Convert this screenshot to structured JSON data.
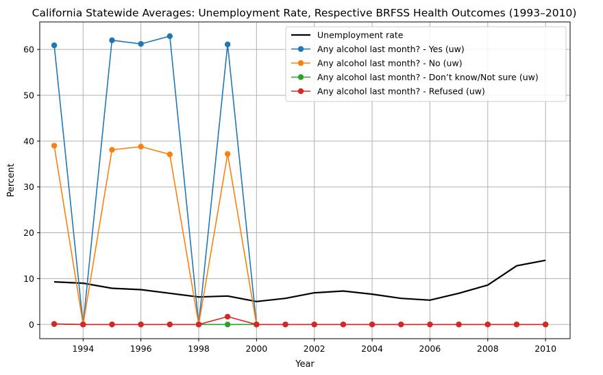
{
  "chart_data": {
    "type": "line",
    "title": "California Statewide Averages: Unemployment Rate, Respective BRFSS Health Outcomes (1993–2010)",
    "xlabel": "Year",
    "ylabel": "Percent",
    "xlim": [
      1992.5,
      2010.85
    ],
    "ylim": [
      -3.1,
      66
    ],
    "xticks": [
      1994,
      1996,
      1998,
      2000,
      2002,
      2004,
      2006,
      2008,
      2010
    ],
    "yticks": [
      0,
      10,
      20,
      30,
      40,
      50,
      60
    ],
    "grid": true,
    "legend_position": "top-right",
    "series": [
      {
        "name": "Unemployment rate",
        "color": "#000000",
        "marker": false,
        "x": [
          1993,
          1994,
          1995,
          1996,
          1997,
          1998,
          1999,
          2000,
          2001,
          2002,
          2003,
          2004,
          2005,
          2006,
          2007,
          2008,
          2009,
          2010
        ],
        "values": [
          9.3,
          9.0,
          7.9,
          7.6,
          6.8,
          6.0,
          6.2,
          5.0,
          5.7,
          6.9,
          7.3,
          6.6,
          5.7,
          5.3,
          6.8,
          8.6,
          12.8,
          14.0
        ]
      },
      {
        "name": "Any alcohol last month? - Yes (uw)",
        "color": "#1f77b4",
        "marker": true,
        "x": [
          1993,
          1994,
          1995,
          1996,
          1997,
          1998,
          1999,
          2000
        ],
        "values": [
          60.9,
          0.0,
          62.0,
          61.2,
          62.9,
          0.0,
          61.1,
          0.0
        ]
      },
      {
        "name": "Any alcohol last month? - No (uw)",
        "color": "#ff7f0e",
        "marker": true,
        "x": [
          1993,
          1994,
          1995,
          1996,
          1997,
          1998,
          1999,
          2000
        ],
        "values": [
          39.0,
          0.0,
          38.1,
          38.8,
          37.1,
          0.0,
          37.2,
          0.0
        ]
      },
      {
        "name": "Any alcohol last month? - Don’t know/Not sure (uw)",
        "color": "#2ca02c",
        "marker": true,
        "x": [
          1993,
          1994,
          1995,
          1996,
          1997,
          1998,
          1999,
          2000,
          2001,
          2002,
          2003,
          2004,
          2005,
          2006,
          2007,
          2008,
          2009,
          2010
        ],
        "values": [
          0.1,
          0.0,
          0.0,
          0.0,
          0.0,
          0.0,
          0.0,
          0.0,
          0.0,
          0.0,
          0.0,
          0.0,
          0.0,
          0.0,
          0.0,
          0.0,
          0.0,
          0.0
        ]
      },
      {
        "name": "Any alcohol last month? - Refused  (uw)",
        "color": "#d62728",
        "marker": true,
        "x": [
          1993,
          1994,
          1995,
          1996,
          1997,
          1998,
          1999,
          2000,
          2001,
          2002,
          2003,
          2004,
          2005,
          2006,
          2007,
          2008,
          2009,
          2010
        ],
        "values": [
          0.1,
          0.0,
          0.0,
          0.0,
          0.0,
          0.0,
          1.7,
          0.0,
          0.0,
          0.0,
          0.0,
          0.0,
          0.0,
          0.0,
          0.0,
          0.0,
          0.0,
          0.0
        ]
      }
    ]
  }
}
